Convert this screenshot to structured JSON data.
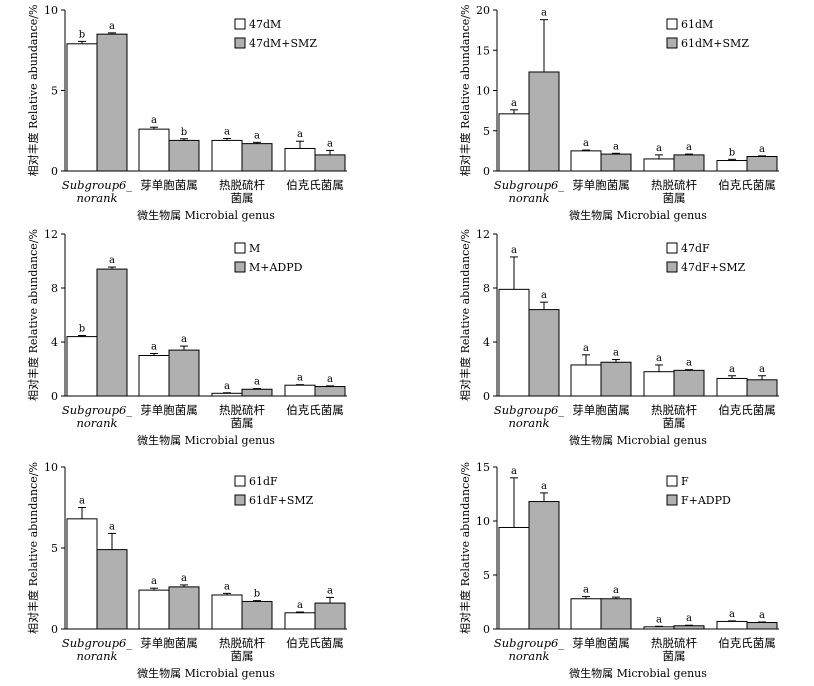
{
  "chart_data": [
    {
      "type": "bar",
      "ylabel": "相对丰度 Relative abundance/%",
      "xlabel": "微生物属 Microbial genus",
      "categories": [
        [
          "Subgroup6_",
          "norank"
        ],
        [
          "芽单胞菌属"
        ],
        [
          "热脱硫杆",
          "菌属"
        ],
        [
          "伯克氏菌属"
        ]
      ],
      "ylim": [
        0,
        10
      ],
      "yticks": [
        "0",
        "5",
        "10"
      ],
      "legend_position": "top-right",
      "series": [
        {
          "name": "47dM",
          "color": "#ffffff",
          "values": [
            7.9,
            2.6,
            1.9,
            1.4
          ],
          "errors": [
            0.15,
            0.12,
            0.12,
            0.45
          ],
          "letters": [
            "b",
            "a",
            "a",
            "a"
          ]
        },
        {
          "name": "47dM+SMZ",
          "color": "#b0b0b0",
          "values": [
            8.5,
            1.9,
            1.7,
            1.0
          ],
          "errors": [
            0.08,
            0.1,
            0.08,
            0.28
          ],
          "letters": [
            "a",
            "b",
            "a",
            "a"
          ]
        }
      ]
    },
    {
      "type": "bar",
      "ylabel": "相对丰度 Relative abundance/%",
      "xlabel": "微生物属 Microbial genus",
      "categories": [
        [
          "Subgroup6_",
          "norank"
        ],
        [
          "芽单胞菌属"
        ],
        [
          "热脱硫杆",
          "菌属"
        ],
        [
          "伯克氏菌属"
        ]
      ],
      "ylim": [
        0,
        20
      ],
      "yticks": [
        "0",
        "5",
        "10",
        "15",
        "20"
      ],
      "legend_position": "top-right",
      "series": [
        {
          "name": "61dM",
          "color": "#ffffff",
          "values": [
            7.1,
            2.5,
            1.5,
            1.3
          ],
          "errors": [
            0.5,
            0.1,
            0.5,
            0.15
          ],
          "letters": [
            "a",
            "a",
            "a",
            "b"
          ]
        },
        {
          "name": "61dM+SMZ",
          "color": "#b0b0b0",
          "values": [
            12.3,
            2.1,
            2.0,
            1.8
          ],
          "errors": [
            6.5,
            0.1,
            0.1,
            0.08
          ],
          "letters": [
            "a",
            "a",
            "a",
            "a"
          ]
        }
      ]
    },
    {
      "type": "bar",
      "ylabel": "相对丰度 Relative abundance/%",
      "xlabel": "微生物属 Microbial genus",
      "categories": [
        [
          "Subgroup6_",
          "norank"
        ],
        [
          "芽单胞菌属"
        ],
        [
          "热脱硫杆",
          "菌属"
        ],
        [
          "伯克氏菌属"
        ]
      ],
      "ylim": [
        0,
        12
      ],
      "yticks": [
        "0",
        "4",
        "8",
        "12"
      ],
      "legend_position": "top-right",
      "series": [
        {
          "name": "M",
          "color": "#ffffff",
          "values": [
            4.4,
            3.0,
            0.2,
            0.8
          ],
          "errors": [
            0.08,
            0.15,
            0.04,
            0.04
          ],
          "letters": [
            "b",
            "a",
            "a",
            "a"
          ]
        },
        {
          "name": "M+ADPD",
          "color": "#b0b0b0",
          "values": [
            9.4,
            3.4,
            0.5,
            0.7
          ],
          "errors": [
            0.15,
            0.3,
            0.05,
            0.05
          ],
          "letters": [
            "a",
            "a",
            "a",
            "a"
          ]
        }
      ]
    },
    {
      "type": "bar",
      "ylabel": "相对丰度 Relative abundance/%",
      "xlabel": "微生物属 Microbial genus",
      "categories": [
        [
          "Subgroup6_",
          "norank"
        ],
        [
          "芽单胞菌属"
        ],
        [
          "热脱硫杆",
          "菌属"
        ],
        [
          "伯克氏菌属"
        ]
      ],
      "ylim": [
        0,
        12
      ],
      "yticks": [
        "0",
        "4",
        "8",
        "12"
      ],
      "legend_position": "top-right",
      "series": [
        {
          "name": "47dF",
          "color": "#ffffff",
          "values": [
            7.9,
            2.3,
            1.8,
            1.3
          ],
          "errors": [
            2.4,
            0.75,
            0.5,
            0.2
          ],
          "letters": [
            "a",
            "a",
            "a",
            "a"
          ]
        },
        {
          "name": "47dF+SMZ",
          "color": "#b0b0b0",
          "values": [
            6.4,
            2.5,
            1.9,
            1.2
          ],
          "errors": [
            0.55,
            0.2,
            0.05,
            0.3
          ],
          "letters": [
            "a",
            "a",
            "a",
            "a"
          ]
        }
      ]
    },
    {
      "type": "bar",
      "ylabel": "相对丰度 Relative abundance/%",
      "xlabel": "微生物属 Microbial genus",
      "categories": [
        [
          "Subgroup6_",
          "norank"
        ],
        [
          "芽单胞菌属"
        ],
        [
          "热脱硫杆",
          "菌属"
        ],
        [
          "伯克氏菌属"
        ]
      ],
      "ylim": [
        0,
        10
      ],
      "yticks": [
        "0",
        "5",
        "10"
      ],
      "legend_position": "top-right",
      "series": [
        {
          "name": "61dF",
          "color": "#ffffff",
          "values": [
            6.8,
            2.4,
            2.1,
            1.0
          ],
          "errors": [
            0.7,
            0.12,
            0.1,
            0.05
          ],
          "letters": [
            "a",
            "a",
            "a",
            "a"
          ]
        },
        {
          "name": "61dF+SMZ",
          "color": "#b0b0b0",
          "values": [
            4.9,
            2.6,
            1.7,
            1.6
          ],
          "errors": [
            1.0,
            0.12,
            0.05,
            0.35
          ],
          "letters": [
            "a",
            "a",
            "b",
            "a"
          ]
        }
      ]
    },
    {
      "type": "bar",
      "ylabel": "相对丰度 Relative abundance/%",
      "xlabel": "微生物属 Microbial genus",
      "categories": [
        [
          "Subgroup6_",
          "norank"
        ],
        [
          "芽单胞菌属"
        ],
        [
          "热脱硫杆",
          "菌属"
        ],
        [
          "伯克氏菌属"
        ]
      ],
      "ylim": [
        0,
        15
      ],
      "yticks": [
        "0",
        "5",
        "10",
        "15"
      ],
      "legend_position": "top-right",
      "series": [
        {
          "name": "F",
          "color": "#ffffff",
          "values": [
            9.4,
            2.8,
            0.2,
            0.7
          ],
          "errors": [
            4.6,
            0.2,
            0.05,
            0.05
          ],
          "letters": [
            "a",
            "a",
            "a",
            "a"
          ]
        },
        {
          "name": "F+ADPD",
          "color": "#b0b0b0",
          "values": [
            11.8,
            2.8,
            0.3,
            0.6
          ],
          "errors": [
            0.8,
            0.15,
            0.05,
            0.05
          ],
          "letters": [
            "a",
            "a",
            "a",
            "a"
          ]
        }
      ]
    }
  ]
}
